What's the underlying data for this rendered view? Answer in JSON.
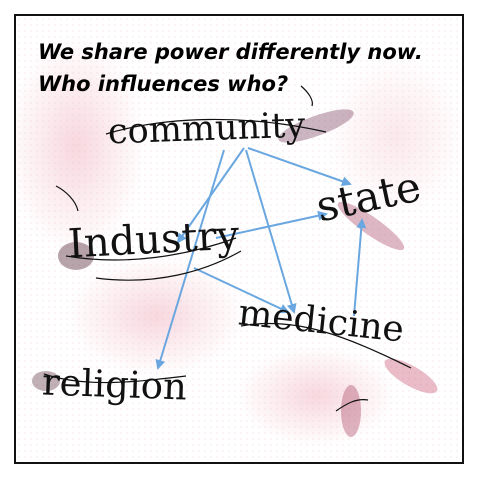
{
  "prompt": {
    "line1": "We share power differently now.",
    "line2": "Who influences who?"
  },
  "words": {
    "community": "community",
    "industry": "Industry",
    "state": "state",
    "medicine": "medicine",
    "religion": "religion"
  },
  "arrows": [
    {
      "from": "community",
      "to": "state"
    },
    {
      "from": "community",
      "to": "religion"
    },
    {
      "from": "community",
      "to": "medicine"
    },
    {
      "from": "community",
      "to": "industry"
    },
    {
      "from": "industry",
      "to": "state"
    },
    {
      "from": "industry",
      "to": "medicine"
    },
    {
      "from": "medicine",
      "to": "state"
    }
  ],
  "colors": {
    "arrow": "#6aa7e0",
    "text": "#111111",
    "accent_pink": "#e6a8b4",
    "accent_dark": "#5a1a3a"
  }
}
